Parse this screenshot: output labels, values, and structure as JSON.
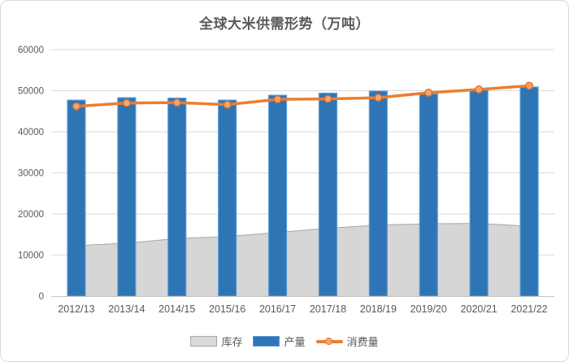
{
  "title": "全球大米供需形势（万吨）",
  "legend": {
    "items": [
      {
        "label": "库存",
        "type": "area"
      },
      {
        "label": "产量",
        "type": "bar"
      },
      {
        "label": "消费量",
        "type": "line"
      }
    ]
  },
  "colors": {
    "bar_fill": "#2e75b6",
    "bar_border": "#5b9bd5",
    "line": "#ed7d31",
    "marker_fill": "#f4a673",
    "marker_stroke": "#e06d22",
    "area_fill": "#d6d6d6",
    "area_border": "#a6a6a6",
    "grid": "#d9d9d9",
    "axis": "#c6c6c6",
    "text": "#595959"
  },
  "chart_data": {
    "type": "composite",
    "title": "全球大米供需形势（万吨）",
    "categories": [
      "2012/13",
      "2013/14",
      "2014/15",
      "2015/16",
      "2016/17",
      "2017/18",
      "2018/19",
      "2019/20",
      "2020/21",
      "2021/22"
    ],
    "series": [
      {
        "name": "库存",
        "type": "area",
        "values": [
          12300,
          12900,
          14000,
          14500,
          15500,
          16500,
          17300,
          17600,
          17700,
          17000
        ]
      },
      {
        "name": "产量",
        "type": "bar",
        "values": [
          47700,
          48300,
          48200,
          47700,
          48900,
          49400,
          49900,
          49200,
          50300,
          50900
        ]
      },
      {
        "name": "消费量",
        "type": "line",
        "values": [
          46200,
          47000,
          47100,
          46600,
          47900,
          48000,
          48300,
          49500,
          50300,
          51200
        ]
      }
    ],
    "xlabel": "",
    "ylabel": "",
    "ylim": [
      0,
      60000
    ],
    "ytick_step": 10000,
    "grid": true,
    "legend_position": "bottom"
  }
}
